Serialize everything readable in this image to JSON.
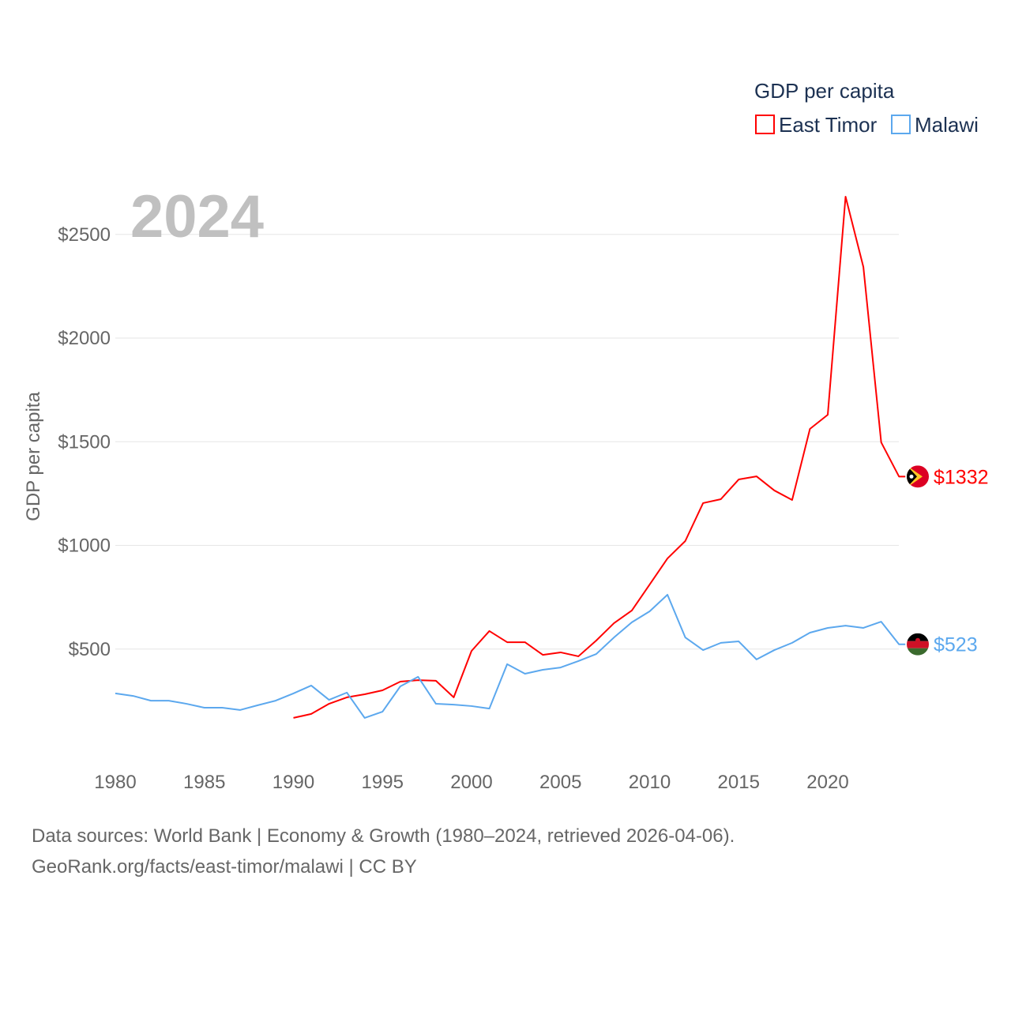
{
  "chart_data": {
    "type": "line",
    "title": "",
    "year_label": "2024",
    "ylabel": "GDP per capita",
    "xlabel": "",
    "xlim": [
      1980,
      2024
    ],
    "ylim": [
      0,
      2700
    ],
    "yticks": [
      500,
      1000,
      1500,
      2000,
      2500
    ],
    "ytick_labels": [
      "$500",
      "$1000",
      "$1500",
      "$2000",
      "$2500"
    ],
    "xticks": [
      1980,
      1985,
      1990,
      1995,
      2000,
      2005,
      2010,
      2015,
      2020
    ],
    "xtick_labels": [
      "1980",
      "1985",
      "1990",
      "1995",
      "2000",
      "2005",
      "2010",
      "2015",
      "2020"
    ],
    "grid": true,
    "legend": {
      "title": "GDP per capita",
      "position": "top-right"
    },
    "series": [
      {
        "name": "East Timor",
        "color": "#ff0000",
        "end_label": "$1332",
        "flag": "east-timor",
        "x": [
          1990,
          1991,
          1992,
          1993,
          1994,
          1995,
          1996,
          1997,
          1998,
          1999,
          2000,
          2001,
          2002,
          2003,
          2004,
          2005,
          2006,
          2007,
          2008,
          2009,
          2010,
          2011,
          2012,
          2013,
          2014,
          2015,
          2016,
          2017,
          2018,
          2019,
          2020,
          2021,
          2022,
          2023,
          2024
        ],
        "values": [
          168,
          187,
          236,
          267,
          282,
          301,
          343,
          350,
          347,
          267,
          491,
          587,
          533,
          533,
          472,
          484,
          465,
          541,
          625,
          686,
          811,
          937,
          1021,
          1204,
          1223,
          1318,
          1333,
          1265,
          1219,
          1562,
          1630,
          2682,
          2343,
          1497,
          1332
        ]
      },
      {
        "name": "Malawi",
        "color": "#5ca8ee",
        "end_label": "$523",
        "flag": "malawi",
        "x": [
          1980,
          1981,
          1982,
          1983,
          1984,
          1985,
          1986,
          1987,
          1988,
          1989,
          1990,
          1991,
          1992,
          1993,
          1994,
          1995,
          1996,
          1997,
          1998,
          1999,
          2000,
          2001,
          2002,
          2003,
          2004,
          2005,
          2006,
          2007,
          2008,
          2009,
          2010,
          2011,
          2012,
          2013,
          2014,
          2015,
          2016,
          2017,
          2018,
          2019,
          2020,
          2021,
          2022,
          2023,
          2024
        ],
        "values": [
          286,
          274,
          251,
          251,
          236,
          217,
          217,
          206,
          229,
          251,
          286,
          324,
          255,
          290,
          168,
          198,
          320,
          366,
          236,
          232,
          225,
          213,
          427,
          381,
          400,
          411,
          442,
          476,
          556,
          629,
          682,
          762,
          556,
          495,
          530,
          537,
          450,
          495,
          530,
          579,
          602,
          613,
          602,
          632,
          523
        ]
      }
    ]
  },
  "footer": {
    "line1": "Data sources: World Bank | Economy & Growth (1980–2024, retrieved 2026-04-06).",
    "line2": "GeoRank.org/facts/east-timor/malawi | CC BY"
  }
}
